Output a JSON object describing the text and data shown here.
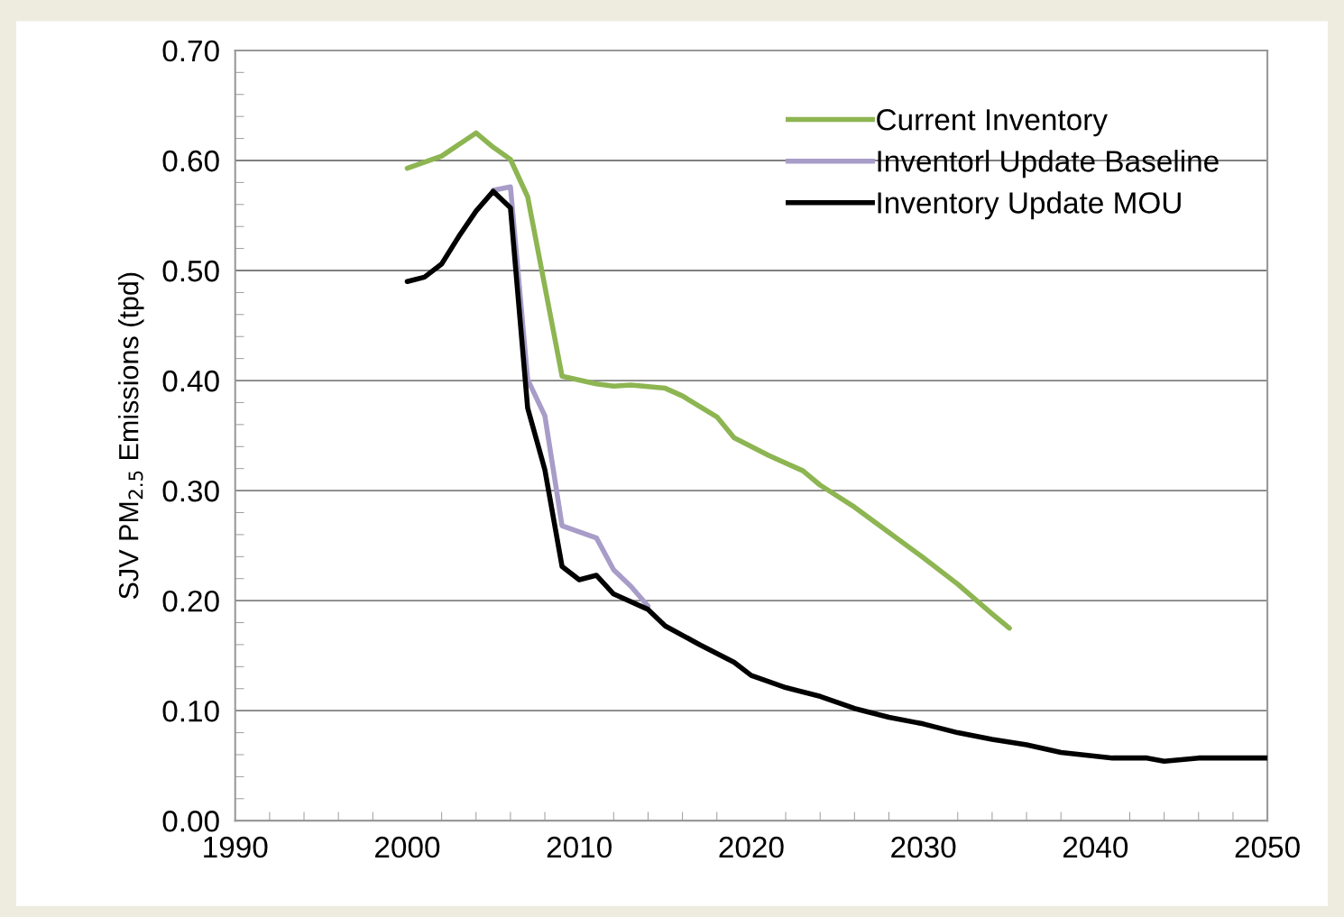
{
  "chart_data": {
    "type": "line",
    "ylabel": "SJV PM$_{2.5}$ Emissions (tpd)",
    "xlim": [
      1990,
      2050
    ],
    "xticks": [
      1990,
      2000,
      2010,
      2020,
      2030,
      2040,
      2050
    ],
    "ylim": [
      0,
      0.7
    ],
    "yticks": [
      {
        "value": 0,
        "label": "0.00"
      },
      {
        "value": 0.1,
        "label": "0.10"
      },
      {
        "value": 0.2,
        "label": "0.20"
      },
      {
        "value": 0.3,
        "label": "0.30"
      },
      {
        "value": 0.4,
        "label": "0.40"
      },
      {
        "value": 0.5,
        "label": "0.50"
      },
      {
        "value": 0.6,
        "label": "0.60"
      },
      {
        "value": 0.7,
        "label": "0.70"
      }
    ],
    "grid": "y",
    "legend": "top right",
    "marker": "none",
    "line_style": "solid",
    "series": [
      {
        "name": "Current Inventory",
        "color": "#8db552",
        "x": [
          2000,
          2002,
          2004,
          2005,
          2006,
          2007,
          2009,
          2011,
          2012,
          2013,
          2015,
          2016,
          2018,
          2019,
          2021,
          2023,
          2024,
          2026,
          2028,
          2030,
          2032,
          2034,
          2035
        ],
        "values": [
          0.593,
          0.604,
          0.625,
          0.612,
          0.601,
          0.567,
          0.404,
          0.397,
          0.395,
          0.396,
          0.393,
          0.386,
          0.367,
          0.348,
          0.332,
          0.318,
          0.305,
          0.285,
          0.262,
          0.239,
          0.215,
          0.188,
          0.175
        ]
      },
      {
        "name": "Inventorl Update Baseline",
        "color": "#a89cc8",
        "x": [
          2005,
          2006,
          2007,
          2008,
          2009,
          2011,
          2012,
          2013,
          2014
        ],
        "values": [
          0.573,
          0.576,
          0.401,
          0.368,
          0.268,
          0.257,
          0.228,
          0.213,
          0.195
        ]
      },
      {
        "name": "Inventory Update MOU",
        "color": "#000000",
        "x": [
          2000,
          2001,
          2002,
          2003,
          2004,
          2005,
          2006,
          2007,
          2008,
          2009,
          2010,
          2011,
          2012,
          2014,
          2015,
          2017,
          2019,
          2020,
          2022,
          2024,
          2026,
          2028,
          2030,
          2032,
          2034,
          2036,
          2038,
          2041,
          2043,
          2044,
          2046,
          2050
        ],
        "values": [
          0.49,
          0.494,
          0.506,
          0.531,
          0.554,
          0.572,
          0.557,
          0.375,
          0.319,
          0.231,
          0.219,
          0.223,
          0.206,
          0.192,
          0.177,
          0.16,
          0.144,
          0.132,
          0.121,
          0.113,
          0.102,
          0.094,
          0.088,
          0.08,
          0.074,
          0.069,
          0.062,
          0.057,
          0.057,
          0.054,
          0.057,
          0.057
        ]
      }
    ]
  }
}
